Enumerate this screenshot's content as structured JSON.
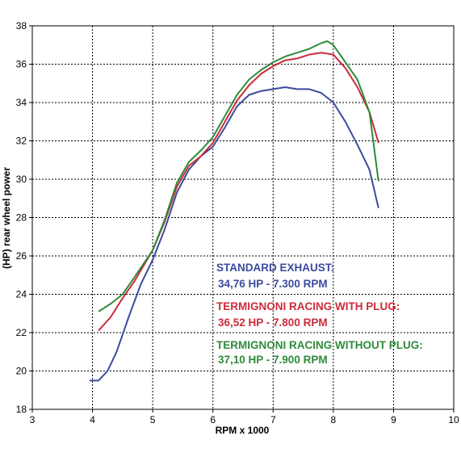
{
  "chart_data": {
    "type": "line",
    "title": "",
    "xlabel": "RPM x 1000",
    "ylabel": "(HP) rear wheel power",
    "xlim": [
      3,
      10
    ],
    "ylim": [
      18,
      38
    ],
    "x_ticks": [
      "3",
      "4",
      "5",
      "6",
      "7",
      "8",
      "9",
      "10"
    ],
    "y_ticks": [
      "18",
      "20",
      "22",
      "24",
      "26",
      "28",
      "30",
      "32",
      "34",
      "36",
      "38"
    ],
    "grid": true,
    "series": [
      {
        "name": "STANDARD EXHAUST",
        "color": "#3c4aa0",
        "points": [
          [
            3.95,
            19.5
          ],
          [
            4.1,
            19.5
          ],
          [
            4.25,
            20.0
          ],
          [
            4.4,
            21.0
          ],
          [
            4.6,
            22.8
          ],
          [
            4.8,
            24.5
          ],
          [
            5.0,
            25.8
          ],
          [
            5.2,
            27.4
          ],
          [
            5.4,
            29.3
          ],
          [
            5.6,
            30.5
          ],
          [
            5.8,
            31.2
          ],
          [
            6.0,
            31.7
          ],
          [
            6.2,
            32.7
          ],
          [
            6.4,
            33.8
          ],
          [
            6.6,
            34.4
          ],
          [
            6.8,
            34.6
          ],
          [
            7.0,
            34.7
          ],
          [
            7.2,
            34.8
          ],
          [
            7.4,
            34.7
          ],
          [
            7.6,
            34.7
          ],
          [
            7.8,
            34.5
          ],
          [
            8.0,
            34.0
          ],
          [
            8.2,
            33.0
          ],
          [
            8.4,
            31.8
          ],
          [
            8.6,
            30.5
          ],
          [
            8.75,
            28.5
          ]
        ]
      },
      {
        "name": "TERMIGNONI RACING WITH PLUG",
        "color": "#cc2b3a",
        "points": [
          [
            4.1,
            22.1
          ],
          [
            4.3,
            22.8
          ],
          [
            4.5,
            23.8
          ],
          [
            4.7,
            24.7
          ],
          [
            5.0,
            26.3
          ],
          [
            5.2,
            27.8
          ],
          [
            5.4,
            29.6
          ],
          [
            5.6,
            30.7
          ],
          [
            5.8,
            31.2
          ],
          [
            6.0,
            31.9
          ],
          [
            6.2,
            33.0
          ],
          [
            6.4,
            34.1
          ],
          [
            6.6,
            34.9
          ],
          [
            6.8,
            35.5
          ],
          [
            7.0,
            35.9
          ],
          [
            7.2,
            36.2
          ],
          [
            7.4,
            36.3
          ],
          [
            7.6,
            36.5
          ],
          [
            7.8,
            36.6
          ],
          [
            8.0,
            36.5
          ],
          [
            8.2,
            35.8
          ],
          [
            8.4,
            34.8
          ],
          [
            8.6,
            33.5
          ],
          [
            8.75,
            31.9
          ]
        ]
      },
      {
        "name": "TERMIGNONI RACING WITHOUT PLUG",
        "color": "#2e8b3a",
        "points": [
          [
            4.1,
            23.1
          ],
          [
            4.3,
            23.5
          ],
          [
            4.5,
            24.0
          ],
          [
            4.7,
            24.9
          ],
          [
            5.0,
            26.3
          ],
          [
            5.2,
            27.9
          ],
          [
            5.4,
            29.8
          ],
          [
            5.6,
            30.9
          ],
          [
            5.8,
            31.5
          ],
          [
            6.0,
            32.2
          ],
          [
            6.2,
            33.3
          ],
          [
            6.4,
            34.4
          ],
          [
            6.6,
            35.2
          ],
          [
            6.8,
            35.7
          ],
          [
            7.0,
            36.1
          ],
          [
            7.2,
            36.4
          ],
          [
            7.4,
            36.6
          ],
          [
            7.6,
            36.8
          ],
          [
            7.8,
            37.1
          ],
          [
            7.9,
            37.2
          ],
          [
            8.0,
            37.0
          ],
          [
            8.2,
            36.1
          ],
          [
            8.4,
            35.2
          ],
          [
            8.6,
            33.5
          ],
          [
            8.75,
            29.9
          ]
        ]
      }
    ],
    "annotations": [
      {
        "label": "STANDARD EXHAUST:",
        "value": "34,76 HP - 7.300 RPM",
        "color": "#3c4aa0"
      },
      {
        "label": "TERMIGNONI RACING WITH PLUG:",
        "value": "36,52 HP - 7.800 RPM",
        "color": "#cc2b3a"
      },
      {
        "label": "TERMIGNONI RACING WITHOUT PLUG:",
        "value": "37,10 HP - 7.900 RPM",
        "color": "#2e8b3a"
      }
    ]
  }
}
